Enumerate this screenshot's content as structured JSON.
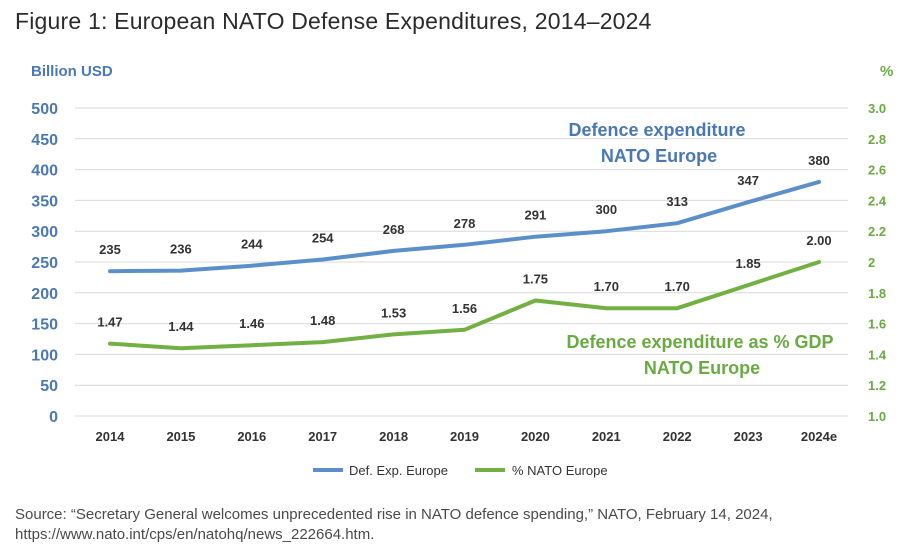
{
  "title": "Figure 1: European NATO Defense Expenditures, 2014–2024",
  "source": "Source: “Secretary General welcomes unprecedented rise in NATO defence spending,” NATO, February 14, 2024, https://www.nato.int/cps/en/natohq/news_222664.htm.",
  "colors": {
    "blue": "#5b8fc9",
    "green": "#72b043",
    "grid": "#d9d9d9"
  },
  "chart_data": {
    "type": "line",
    "categories": [
      "2014",
      "2015",
      "2016",
      "2017",
      "2018",
      "2019",
      "2020",
      "2021",
      "2022",
      "2023",
      "2024e"
    ],
    "series": [
      {
        "name": "Def. Exp. Europe",
        "axis": "left",
        "values": [
          235,
          236,
          244,
          254,
          268,
          278,
          291,
          300,
          313,
          347,
          380
        ],
        "labels": [
          "235",
          "236",
          "244",
          "254",
          "268",
          "278",
          "291",
          "300",
          "313",
          "347",
          "380"
        ]
      },
      {
        "name": "% NATO Europe",
        "axis": "right",
        "values": [
          1.47,
          1.44,
          1.46,
          1.48,
          1.53,
          1.56,
          1.75,
          1.7,
          1.7,
          1.85,
          2.0
        ],
        "labels": [
          "1.47",
          "1.44",
          "1.46",
          "1.48",
          "1.53",
          "1.56",
          "1.75",
          "1.70",
          "1.70",
          "1.85",
          "2.00"
        ]
      }
    ],
    "y_left": {
      "label": "Billion USD",
      "min": 0,
      "max": 500,
      "ticks": [
        "0",
        "50",
        "100",
        "150",
        "200",
        "250",
        "300",
        "350",
        "400",
        "450",
        "500"
      ]
    },
    "y_right": {
      "label": "%",
      "min": 1.0,
      "max": 3.0,
      "ticks": [
        "1.0",
        "1.2",
        "1.4",
        "1.6",
        "1.8",
        "2",
        "2.2",
        "2.4",
        "2.6",
        "2.8",
        "3.0"
      ]
    },
    "annotations": {
      "blue": [
        "Defence expenditure",
        "NATO Europe"
      ],
      "green": [
        "Defence expenditure as % GDP",
        "NATO Europe"
      ]
    },
    "legend": [
      "Def. Exp. Europe",
      "% NATO Europe"
    ],
    "grid": true
  }
}
